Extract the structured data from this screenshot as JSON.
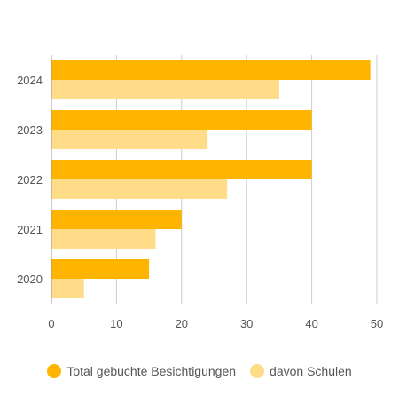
{
  "chart_data": {
    "type": "bar",
    "orientation": "horizontal",
    "categories": [
      "2024",
      "2023",
      "2022",
      "2021",
      "2020"
    ],
    "series": [
      {
        "name": "Total gebuchte Besichtigungen",
        "color": "#ffb400",
        "values": [
          49,
          40,
          40,
          20,
          15
        ]
      },
      {
        "name": "davon Schulen",
        "color": "#ffdd88",
        "values": [
          35,
          24,
          27,
          16,
          5
        ]
      }
    ],
    "xticks": [
      "0",
      "10",
      "20",
      "30",
      "40",
      "50"
    ],
    "xlim": [
      0,
      50
    ],
    "grid": true,
    "legend_position": "bottom"
  }
}
